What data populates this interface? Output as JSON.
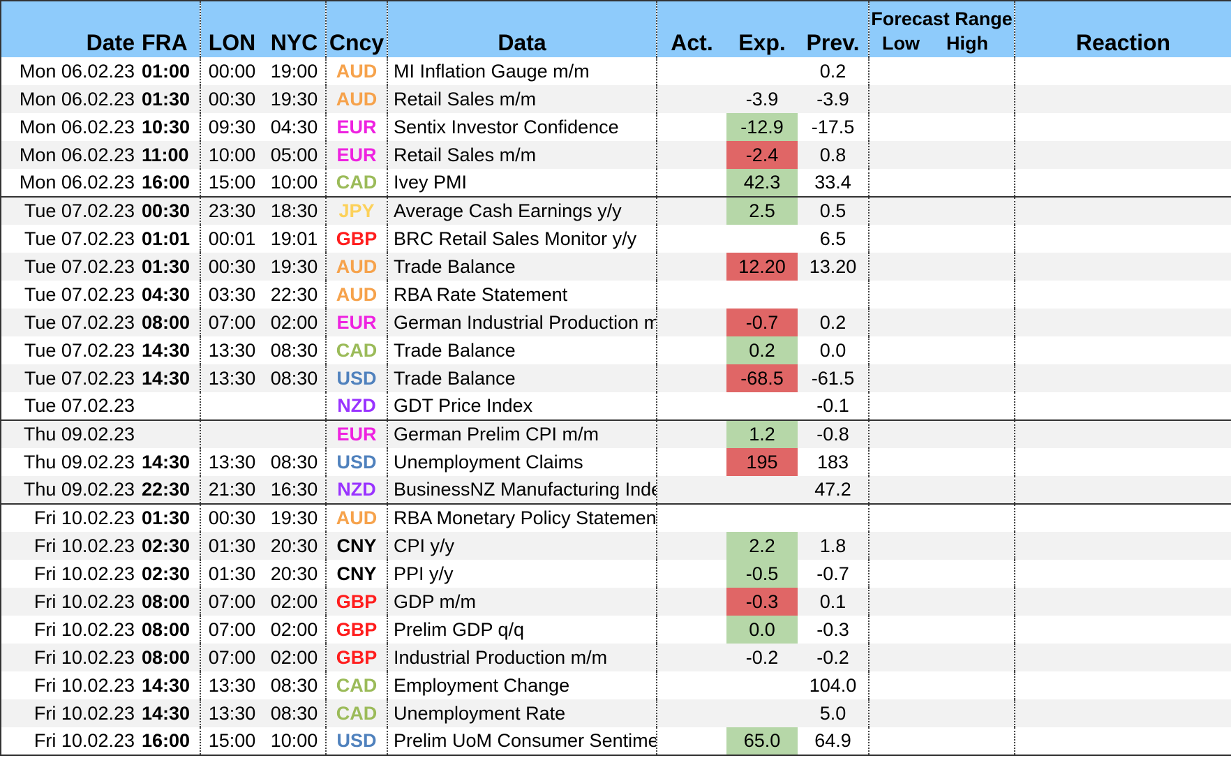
{
  "header": {
    "date": "Date",
    "fra": "FRA",
    "lon": "LON",
    "nyc": "NYC",
    "ccy": "Cncy",
    "data": "Data",
    "act": "Act.",
    "exp": "Exp.",
    "prev": "Prev.",
    "forecast_range": "Forecast Range",
    "low": "Low",
    "high": "High",
    "reaction": "Reaction"
  },
  "currency_colors": {
    "AUD": "#f6a24b",
    "EUR": "#ee22e0",
    "CAD": "#9bbb59",
    "JPY": "#fcd15a",
    "GBP": "#ff1d1d",
    "USD": "#4f81bd",
    "NZD": "#9933ff",
    "CNY": "#000000"
  },
  "exp_colors": {
    "good": "#b6d7a8",
    "bad": "#e06666"
  },
  "rows": [
    {
      "date": "Mon 06.02.23",
      "fra": "01:00",
      "lon": "00:00",
      "nyc": "19:00",
      "ccy": "AUD",
      "data": "MI Inflation Gauge m/m",
      "act": "",
      "exp": "",
      "exp_state": "",
      "prev": "0.2"
    },
    {
      "date": "Mon 06.02.23",
      "fra": "01:30",
      "lon": "00:30",
      "nyc": "19:30",
      "ccy": "AUD",
      "data": "Retail Sales m/m",
      "act": "",
      "exp": "-3.9",
      "exp_state": "",
      "prev": "-3.9"
    },
    {
      "date": "Mon 06.02.23",
      "fra": "10:30",
      "lon": "09:30",
      "nyc": "04:30",
      "ccy": "EUR",
      "data": "Sentix Investor Confidence",
      "act": "",
      "exp": "-12.9",
      "exp_state": "good",
      "prev": "-17.5"
    },
    {
      "date": "Mon 06.02.23",
      "fra": "11:00",
      "lon": "10:00",
      "nyc": "05:00",
      "ccy": "EUR",
      "data": "Retail Sales m/m",
      "act": "",
      "exp": "-2.4",
      "exp_state": "bad",
      "prev": "0.8"
    },
    {
      "date": "Mon 06.02.23",
      "fra": "16:00",
      "lon": "15:00",
      "nyc": "10:00",
      "ccy": "CAD",
      "data": "Ivey PMI",
      "act": "",
      "exp": "42.3",
      "exp_state": "good",
      "prev": "33.4",
      "group_end": true
    },
    {
      "date": "Tue 07.02.23",
      "fra": "00:30",
      "lon": "23:30",
      "nyc": "18:30",
      "ccy": "JPY",
      "data": "Average Cash Earnings y/y",
      "act": "",
      "exp": "2.5",
      "exp_state": "good",
      "prev": "0.5"
    },
    {
      "date": "Tue 07.02.23",
      "fra": "01:01",
      "lon": "00:01",
      "nyc": "19:01",
      "ccy": "GBP",
      "data": "BRC Retail Sales Monitor y/y",
      "act": "",
      "exp": "",
      "exp_state": "",
      "prev": "6.5"
    },
    {
      "date": "Tue 07.02.23",
      "fra": "01:30",
      "lon": "00:30",
      "nyc": "19:30",
      "ccy": "AUD",
      "data": "Trade Balance",
      "act": "",
      "exp": "12.20",
      "exp_state": "bad",
      "prev": "13.20"
    },
    {
      "date": "Tue 07.02.23",
      "fra": "04:30",
      "lon": "03:30",
      "nyc": "22:30",
      "ccy": "AUD",
      "data": "RBA Rate Statement",
      "act": "",
      "exp": "",
      "exp_state": "",
      "prev": ""
    },
    {
      "date": "Tue 07.02.23",
      "fra": "08:00",
      "lon": "07:00",
      "nyc": "02:00",
      "ccy": "EUR",
      "data": "German Industrial Production m/m",
      "act": "",
      "exp": "-0.7",
      "exp_state": "bad",
      "prev": "0.2"
    },
    {
      "date": "Tue 07.02.23",
      "fra": "14:30",
      "lon": "13:30",
      "nyc": "08:30",
      "ccy": "CAD",
      "data": "Trade Balance",
      "act": "",
      "exp": "0.2",
      "exp_state": "good",
      "prev": "0.0"
    },
    {
      "date": "Tue 07.02.23",
      "fra": "14:30",
      "lon": "13:30",
      "nyc": "08:30",
      "ccy": "USD",
      "data": "Trade Balance",
      "act": "",
      "exp": "-68.5",
      "exp_state": "bad",
      "prev": "-61.5"
    },
    {
      "date": "Tue 07.02.23",
      "fra": "",
      "lon": "",
      "nyc": "",
      "ccy": "NZD",
      "data": "GDT Price Index",
      "act": "",
      "exp": "",
      "exp_state": "",
      "prev": "-0.1",
      "group_end": true
    },
    {
      "date": "Thu 09.02.23",
      "fra": "",
      "lon": "",
      "nyc": "",
      "ccy": "EUR",
      "data": "German Prelim CPI m/m",
      "act": "",
      "exp": "1.2",
      "exp_state": "good",
      "prev": "-0.8"
    },
    {
      "date": "Thu 09.02.23",
      "fra": "14:30",
      "lon": "13:30",
      "nyc": "08:30",
      "ccy": "USD",
      "data": "Unemployment Claims",
      "act": "",
      "exp": "195",
      "exp_state": "bad",
      "prev": "183"
    },
    {
      "date": "Thu 09.02.23",
      "fra": "22:30",
      "lon": "21:30",
      "nyc": "16:30",
      "ccy": "NZD",
      "data": "BusinessNZ Manufacturing Index",
      "act": "",
      "exp": "",
      "exp_state": "",
      "prev": "47.2",
      "group_end": true
    },
    {
      "date": "Fri 10.02.23",
      "fra": "01:30",
      "lon": "00:30",
      "nyc": "19:30",
      "ccy": "AUD",
      "data": "RBA Monetary Policy Statement",
      "act": "",
      "exp": "",
      "exp_state": "",
      "prev": ""
    },
    {
      "date": "Fri 10.02.23",
      "fra": "02:30",
      "lon": "01:30",
      "nyc": "20:30",
      "ccy": "CNY",
      "data": "CPI y/y",
      "act": "",
      "exp": "2.2",
      "exp_state": "good",
      "prev": "1.8"
    },
    {
      "date": "Fri 10.02.23",
      "fra": "02:30",
      "lon": "01:30",
      "nyc": "20:30",
      "ccy": "CNY",
      "data": "PPI y/y",
      "act": "",
      "exp": "-0.5",
      "exp_state": "good",
      "prev": "-0.7"
    },
    {
      "date": "Fri 10.02.23",
      "fra": "08:00",
      "lon": "07:00",
      "nyc": "02:00",
      "ccy": "GBP",
      "data": "GDP m/m",
      "act": "",
      "exp": "-0.3",
      "exp_state": "bad",
      "prev": "0.1"
    },
    {
      "date": "Fri 10.02.23",
      "fra": "08:00",
      "lon": "07:00",
      "nyc": "02:00",
      "ccy": "GBP",
      "data": "Prelim GDP q/q",
      "act": "",
      "exp": "0.0",
      "exp_state": "good",
      "prev": "-0.3"
    },
    {
      "date": "Fri 10.02.23",
      "fra": "08:00",
      "lon": "07:00",
      "nyc": "02:00",
      "ccy": "GBP",
      "data": "Industrial Production m/m",
      "act": "",
      "exp": "-0.2",
      "exp_state": "",
      "prev": "-0.2"
    },
    {
      "date": "Fri 10.02.23",
      "fra": "14:30",
      "lon": "13:30",
      "nyc": "08:30",
      "ccy": "CAD",
      "data": "Employment Change",
      "act": "",
      "exp": "",
      "exp_state": "",
      "prev": "104.0"
    },
    {
      "date": "Fri 10.02.23",
      "fra": "14:30",
      "lon": "13:30",
      "nyc": "08:30",
      "ccy": "CAD",
      "data": "Unemployment Rate",
      "act": "",
      "exp": "",
      "exp_state": "",
      "prev": "5.0"
    },
    {
      "date": "Fri 10.02.23",
      "fra": "16:00",
      "lon": "15:00",
      "nyc": "10:00",
      "ccy": "USD",
      "data": "Prelim UoM Consumer Sentiment",
      "act": "",
      "exp": "65.0",
      "exp_state": "good",
      "prev": "64.9",
      "group_end": true
    }
  ]
}
